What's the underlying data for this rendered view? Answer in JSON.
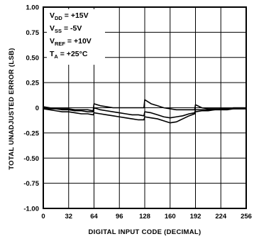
{
  "chart_data": {
    "type": "line",
    "title": "",
    "xlabel": "DIGITAL INPUT CODE (DECIMAL)",
    "ylabel": "TOTAL UNADJUSTED ERROR (LSB)",
    "xlim": [
      0,
      256
    ],
    "ylim": [
      -1.0,
      1.0
    ],
    "x_ticks": [
      0,
      32,
      64,
      96,
      128,
      160,
      192,
      224,
      256
    ],
    "x_tick_labels": [
      "0",
      "32",
      "64",
      "96",
      "128",
      "160",
      "192",
      "224",
      "256"
    ],
    "y_ticks": [
      1.0,
      0.75,
      0.5,
      0.25,
      0,
      -0.25,
      -0.5,
      -0.75,
      -1.0
    ],
    "y_tick_labels": [
      "1.00",
      "0.75",
      "0.50",
      "0.25",
      "0",
      "-0.25",
      "-0.50",
      "-0.75",
      "-1.00"
    ],
    "grid": true,
    "conditions": [
      {
        "main": "V",
        "sub": "DD",
        "rest": " = +15V"
      },
      {
        "main": "V",
        "sub": "SS",
        "rest": " = -5V"
      },
      {
        "main": "V",
        "sub": "REF",
        "rest": " = +10V"
      },
      {
        "main": "T",
        "sub": "A",
        "rest": " = +25°C"
      }
    ],
    "series": [
      {
        "x": [
          0,
          8,
          16,
          24,
          32,
          40,
          48,
          56,
          63,
          64,
          72,
          80,
          88,
          96,
          104,
          112,
          120,
          127,
          128,
          136,
          144,
          152,
          160,
          168,
          176,
          184,
          191,
          192,
          200,
          208,
          216,
          224,
          232,
          240,
          248,
          256
        ],
        "y": [
          0.01,
          0.0,
          -0.01,
          -0.01,
          -0.01,
          -0.02,
          -0.02,
          -0.02,
          -0.03,
          0.04,
          0.02,
          0.01,
          0.0,
          0.0,
          0.0,
          0.0,
          0.0,
          0.0,
          0.08,
          0.04,
          0.02,
          0.0,
          -0.01,
          -0.02,
          -0.02,
          -0.02,
          -0.02,
          0.03,
          0.0,
          -0.01,
          -0.01,
          -0.01,
          -0.01,
          0.0,
          0.0,
          0.0
        ]
      },
      {
        "x": [
          0,
          8,
          16,
          24,
          32,
          40,
          48,
          56,
          63,
          64,
          72,
          80,
          88,
          96,
          104,
          112,
          120,
          127,
          128,
          136,
          144,
          152,
          160,
          168,
          176,
          184,
          191,
          192,
          200,
          208,
          216,
          224,
          232,
          240,
          248,
          256
        ],
        "y": [
          0.0,
          -0.01,
          -0.01,
          -0.02,
          -0.02,
          -0.03,
          -0.03,
          -0.04,
          -0.04,
          0.0,
          -0.02,
          -0.03,
          -0.04,
          -0.05,
          -0.06,
          -0.07,
          -0.07,
          -0.08,
          -0.04,
          -0.05,
          -0.07,
          -0.09,
          -0.1,
          -0.09,
          -0.08,
          -0.06,
          -0.05,
          -0.02,
          -0.02,
          -0.02,
          -0.02,
          -0.01,
          -0.01,
          -0.01,
          -0.01,
          -0.01
        ]
      },
      {
        "x": [
          0,
          8,
          16,
          24,
          32,
          40,
          48,
          56,
          63,
          64,
          72,
          80,
          88,
          96,
          104,
          112,
          120,
          127,
          128,
          136,
          144,
          152,
          160,
          168,
          176,
          184,
          191,
          192,
          200,
          208,
          216,
          224,
          232,
          240,
          248,
          256
        ],
        "y": [
          -0.01,
          -0.02,
          -0.03,
          -0.04,
          -0.04,
          -0.05,
          -0.06,
          -0.06,
          -0.07,
          -0.05,
          -0.06,
          -0.07,
          -0.08,
          -0.09,
          -0.1,
          -0.11,
          -0.12,
          -0.12,
          -0.09,
          -0.1,
          -0.11,
          -0.13,
          -0.15,
          -0.14,
          -0.11,
          -0.08,
          -0.06,
          -0.04,
          -0.03,
          -0.03,
          -0.02,
          -0.02,
          -0.02,
          -0.01,
          -0.01,
          -0.01
        ]
      }
    ]
  }
}
